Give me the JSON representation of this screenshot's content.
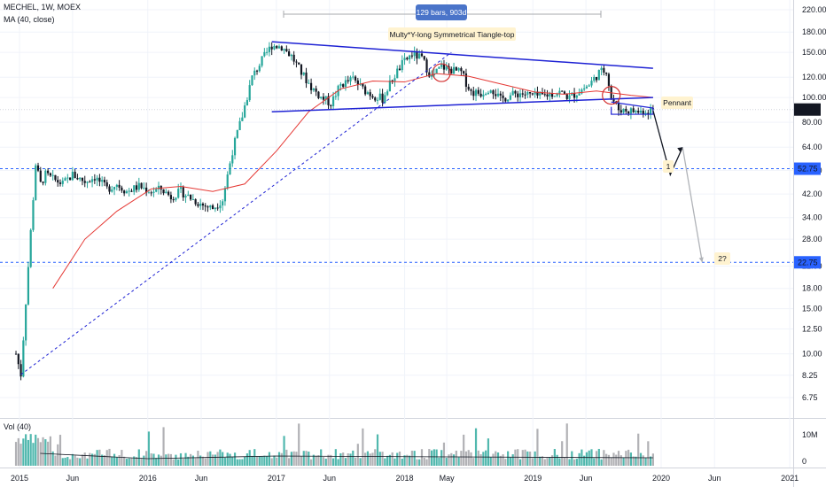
{
  "header": {
    "symbol_line": "MECHEL, 1W, MOEX",
    "ma_line": "MA (40, close)",
    "volume_line": "Vol (40)"
  },
  "chart_data": {
    "type": "candlestick",
    "symbol": "MECHEL",
    "timeframe": "1W",
    "exchange": "MOEX",
    "y_scale": "log",
    "y_ticks": [
      "220.00",
      "180.00",
      "150.00",
      "120.00",
      "100.00",
      "80.00",
      "64.00",
      "52.00",
      "42.00",
      "34.00",
      "28.00",
      "22.00",
      "18.00",
      "15.00",
      "12.50",
      "10.00",
      "8.25",
      "6.75"
    ],
    "x_ticks": [
      "2015",
      "Jun",
      "2016",
      "Jun",
      "2017",
      "Jun",
      "2018",
      "May",
      "2019",
      "Jun",
      "2020",
      "Jun",
      "2021"
    ],
    "volume_ticks": [
      "10M",
      "0"
    ],
    "last_price_label": "89.75",
    "level_labels": [
      "52.75",
      "22.75"
    ],
    "levels": [
      52.75,
      22.75
    ],
    "annotations": {
      "range_tag": "129 bars, 903d",
      "pattern_tag": "Multy*Y-long Symmetrical Tiangle-top",
      "pennant_tag": "Pennant",
      "target1_tag": "1",
      "target2_tag": "2?"
    },
    "price_path": [
      [
        "2014-12-22",
        10.0
      ],
      [
        "2015-01-05",
        8.3
      ],
      [
        "2015-01-19",
        16.0
      ],
      [
        "2015-02-02",
        30.0
      ],
      [
        "2015-02-16",
        55.0
      ],
      [
        "2015-03-02",
        46.0
      ],
      [
        "2015-03-16",
        50.0
      ],
      [
        "2015-04-06",
        48.0
      ],
      [
        "2015-05-04",
        46.0
      ],
      [
        "2015-06-01",
        50.0
      ],
      [
        "2015-07-06",
        47.0
      ],
      [
        "2015-08-03",
        49.0
      ],
      [
        "2015-09-07",
        44.0
      ],
      [
        "2015-10-05",
        46.0
      ],
      [
        "2015-11-02",
        43.0
      ],
      [
        "2015-12-07",
        45.0
      ],
      [
        "2016-01-11",
        43.0
      ],
      [
        "2016-02-08",
        44.0
      ],
      [
        "2016-03-07",
        41.0
      ],
      [
        "2016-04-04",
        43.0
      ],
      [
        "2016-05-09",
        40.0
      ],
      [
        "2016-06-06",
        38.0
      ],
      [
        "2016-07-04",
        37.0
      ],
      [
        "2016-08-01",
        40.0
      ],
      [
        "2016-08-29",
        62.0
      ],
      [
        "2016-09-26",
        85.0
      ],
      [
        "2016-10-24",
        120.0
      ],
      [
        "2016-11-21",
        140.0
      ],
      [
        "2016-12-19",
        160.0
      ],
      [
        "2017-01-16",
        158.0
      ],
      [
        "2017-02-13",
        145.0
      ],
      [
        "2017-03-13",
        125.0
      ],
      [
        "2017-04-10",
        110.0
      ],
      [
        "2017-05-08",
        100.0
      ],
      [
        "2017-06-05",
        95.0
      ],
      [
        "2017-07-03",
        112.0
      ],
      [
        "2017-08-07",
        118.0
      ],
      [
        "2017-09-04",
        108.0
      ],
      [
        "2017-10-02",
        102.0
      ],
      [
        "2017-10-30",
        99.0
      ],
      [
        "2017-11-27",
        118.0
      ],
      [
        "2017-12-25",
        135.0
      ],
      [
        "2018-01-22",
        148.0
      ],
      [
        "2018-02-19",
        142.0
      ],
      [
        "2018-03-19",
        120.0
      ],
      [
        "2018-04-16",
        132.0
      ],
      [
        "2018-05-14",
        128.0
      ],
      [
        "2018-06-11",
        125.0
      ],
      [
        "2018-07-09",
        105.0
      ],
      [
        "2018-08-06",
        104.0
      ],
      [
        "2018-09-03",
        110.0
      ],
      [
        "2018-10-01",
        98.0
      ],
      [
        "2018-10-29",
        102.0
      ],
      [
        "2018-11-26",
        104.0
      ],
      [
        "2018-12-24",
        102.0
      ],
      [
        "2019-01-21",
        101.0
      ],
      [
        "2019-02-18",
        103.0
      ],
      [
        "2019-03-18",
        105.0
      ],
      [
        "2019-04-15",
        100.0
      ],
      [
        "2019-05-13",
        106.0
      ],
      [
        "2019-06-10",
        112.0
      ],
      [
        "2019-07-08",
        125.0
      ],
      [
        "2019-07-29",
        128.0
      ],
      [
        "2019-08-12",
        100.0
      ],
      [
        "2019-09-02",
        90.0
      ],
      [
        "2019-09-30",
        89.0
      ],
      [
        "2019-10-28",
        88.0
      ],
      [
        "2019-11-25",
        89.0
      ],
      [
        "2019-12-09",
        89.75
      ]
    ],
    "ma40_path": [
      [
        "2015-04-06",
        18.0
      ],
      [
        "2015-07-06",
        28.0
      ],
      [
        "2015-10-05",
        36.0
      ],
      [
        "2016-01-11",
        44.0
      ],
      [
        "2016-04-04",
        45.0
      ],
      [
        "2016-07-04",
        43.0
      ],
      [
        "2016-10-03",
        46.0
      ],
      [
        "2017-01-02",
        62.0
      ],
      [
        "2017-04-03",
        88.0
      ],
      [
        "2017-07-03",
        108.0
      ],
      [
        "2017-10-02",
        116.0
      ],
      [
        "2018-01-01",
        115.0
      ],
      [
        "2018-04-02",
        124.0
      ],
      [
        "2018-07-02",
        121.0
      ],
      [
        "2018-10-01",
        113.0
      ],
      [
        "2019-01-07",
        105.0
      ],
      [
        "2019-04-01",
        103.0
      ],
      [
        "2019-07-01",
        106.0
      ],
      [
        "2019-10-07",
        102.0
      ],
      [
        "2019-12-09",
        100.0
      ]
    ],
    "trend_lines": [
      {
        "name": "triangle-top",
        "from": [
          "2016-12-19",
          165.0
        ],
        "to": [
          "2019-12-09",
          130.0
        ]
      },
      {
        "name": "triangle-bottom",
        "from": [
          "2016-12-19",
          88.0
        ],
        "to": [
          "2019-12-09",
          100.0
        ]
      },
      {
        "name": "long-support",
        "from": [
          "2015-01-05",
          8.3
        ],
        "to": [
          "2018-05-14",
          150.0
        ]
      }
    ],
    "projection": {
      "arrow_1": [
        [
          "2019-12-09",
          89.0
        ],
        [
          "2020-01-27",
          50.0
        ],
        [
          "2020-03-02",
          64.0
        ]
      ],
      "arrow_2": [
        [
          "2020-03-02",
          64.0
        ],
        [
          "2020-04-27",
          22.75
        ]
      ]
    }
  },
  "colors": {
    "up": "#26a69a",
    "down": "#131722",
    "ma": "#e53935",
    "trend": "#1e22d4",
    "level": "#2962ff",
    "tag_blue": "#4a74c9",
    "tag_yellow": "#fff3d0",
    "circle": "#d32f2f",
    "projection_gray": "#b0b3b8"
  }
}
